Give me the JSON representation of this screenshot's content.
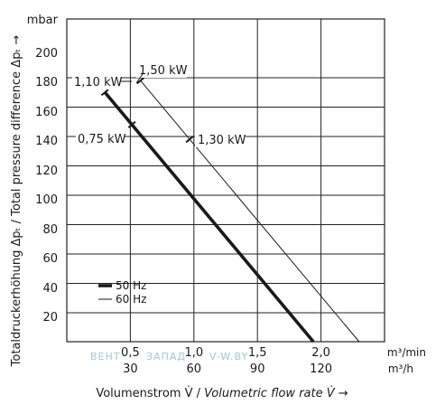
{
  "chart_data": {
    "type": "line",
    "ylabel": "Totaldruckerhöhung Δpₜ / Total pressure difference Δpₜ →",
    "xlabel_de": "Volumenstrom V̇ / ",
    "xlabel_en": "Volumetric flow rate V̇ →",
    "yunit": "mbar",
    "ylim": [
      0,
      200
    ],
    "yticks": [
      "20",
      "40",
      "60",
      "80",
      "100",
      "120",
      "140",
      "160",
      "180",
      "200"
    ],
    "xlim": [
      0,
      2.5
    ],
    "x_ticks_m3min": [
      "0,5",
      "1,0",
      "1,5",
      "2,0"
    ],
    "x_ticks_m3h": [
      "30",
      "60",
      "90",
      "120"
    ],
    "x_unit_m3min": "m³/min",
    "x_unit_m3h": "m³/h",
    "grid": true,
    "series": [
      {
        "name": "50 Hz",
        "x": [
          0.3,
          1.94
        ],
        "y": [
          170,
          0
        ],
        "color": "#1a1a1a"
      },
      {
        "name": "60 Hz",
        "x": [
          0.58,
          2.3
        ],
        "y": [
          178,
          0
        ],
        "color": "#1a1a1a"
      }
    ],
    "annotations": [
      {
        "text": "1,10 kW",
        "x": 0.3,
        "y": 180
      },
      {
        "text": "1,50 kW",
        "x": 0.58,
        "y": 182
      },
      {
        "text": "0,75 kW",
        "x": 0.5,
        "y": 147
      },
      {
        "text": "1,30 kW",
        "x": 0.96,
        "y": 138
      }
    ],
    "legend_position": "bottom-left"
  },
  "watermark": {
    "left": "ВЕНТ",
    "middle": "ЗАПАД",
    "right": "V-W.BY"
  }
}
